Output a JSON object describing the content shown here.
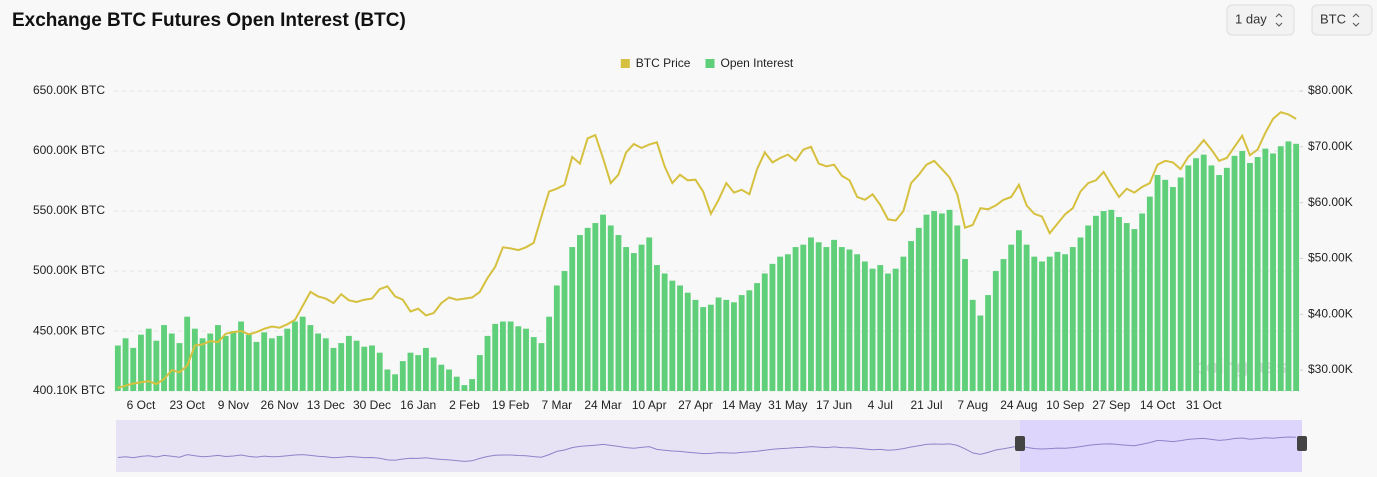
{
  "controls": [
    "1 day",
    "BTC"
  ],
  "watermark": "coinglass",
  "chart_data": {
    "type": "bar",
    "title": "Exchange BTC Futures Open Interest (BTC)",
    "categories": [
      null,
      null,
      null,
      "6 Oct",
      null,
      null,
      null,
      null,
      null,
      "23 Oct",
      null,
      null,
      null,
      null,
      null,
      "9 Nov",
      null,
      null,
      null,
      null,
      null,
      "26 Nov",
      null,
      null,
      null,
      null,
      null,
      "13 Dec",
      null,
      null,
      null,
      null,
      null,
      "30 Dec",
      null,
      null,
      null,
      null,
      null,
      "16 Jan",
      null,
      null,
      null,
      null,
      null,
      "2 Feb",
      null,
      null,
      null,
      null,
      null,
      "19 Feb",
      null,
      null,
      null,
      null,
      null,
      "7 Mar",
      null,
      null,
      null,
      null,
      null,
      "24 Mar",
      null,
      null,
      null,
      null,
      null,
      "10 Apr",
      null,
      null,
      null,
      null,
      null,
      "27 Apr",
      null,
      null,
      null,
      null,
      null,
      "14 May",
      null,
      null,
      null,
      null,
      null,
      "31 May",
      null,
      null,
      null,
      null,
      null,
      "17 Jun",
      null,
      null,
      null,
      null,
      null,
      "4 Jul",
      null,
      null,
      null,
      null,
      null,
      "21 Jul",
      null,
      null,
      null,
      null,
      null,
      "7 Aug",
      null,
      null,
      null,
      null,
      null,
      "24 Aug",
      null,
      null,
      null,
      null,
      null,
      "10 Sep",
      null,
      null,
      null,
      null,
      null,
      "27 Sep",
      null,
      null,
      null,
      null,
      null,
      "14 Oct",
      null,
      null,
      null,
      null,
      null,
      "31 Oct",
      null,
      null,
      null,
      null,
      null,
      null,
      null,
      null,
      null,
      null,
      null,
      null
    ],
    "series": [
      {
        "name": "BTC Price",
        "type": "line",
        "axis": "y2",
        "color": "#d6c03f",
        "values": [
          26.8,
          27.2,
          27.6,
          27.8,
          28.0,
          27.5,
          28.4,
          30.0,
          29.6,
          30.8,
          34.4,
          34.6,
          35.2,
          35.0,
          36.5,
          36.8,
          37.0,
          36.4,
          36.8,
          37.4,
          37.8,
          37.6,
          38.2,
          39.0,
          41.5,
          44.0,
          43.2,
          42.8,
          42.0,
          43.6,
          42.5,
          42.2,
          42.6,
          42.8,
          44.5,
          45.0,
          43.2,
          42.6,
          40.5,
          41.0,
          39.8,
          40.2,
          42.0,
          43.0,
          42.6,
          42.8,
          43.0,
          44.0,
          46.5,
          48.5,
          52.0,
          51.8,
          51.5,
          52.0,
          52.8,
          57.5,
          62.0,
          62.5,
          63.2,
          68.2,
          67.0,
          71.5,
          72.1,
          68.0,
          63.5,
          65.0,
          69.0,
          70.5,
          69.8,
          70.4,
          70.8,
          66.5,
          63.5,
          65.0,
          64.0,
          64.1,
          62.0,
          58.0,
          60.5,
          63.5,
          61.8,
          62.3,
          61.5,
          66.0,
          69.0,
          67.2,
          68.0,
          68.6,
          67.5,
          69.5,
          70.0,
          67.0,
          66.5,
          66.8,
          64.8,
          64.0,
          61.0,
          60.5,
          61.5,
          59.6,
          57.0,
          56.8,
          58.5,
          63.5,
          65.0,
          66.8,
          67.5,
          66.0,
          64.5,
          61.5,
          55.5,
          56.0,
          59.0,
          58.8,
          59.5,
          60.5,
          61.0,
          63.2,
          59.5,
          58.0,
          57.5,
          54.5,
          56.2,
          57.9,
          59.0,
          62.0,
          63.5,
          64.0,
          65.5,
          63.2,
          61.0,
          62.5,
          61.8,
          62.8,
          63.5,
          66.8,
          67.5,
          67.2,
          66.0,
          68.2,
          69.5,
          71.2,
          69.5,
          67.5,
          68.0,
          70.0,
          72.0,
          68.5,
          69.5,
          72.5,
          75.0,
          76.2,
          75.8,
          75.0
        ]
      },
      {
        "name": "Open Interest",
        "type": "bar",
        "color": "#5fd079",
        "values": [
          438,
          444,
          436,
          447,
          452,
          442,
          455,
          448,
          440,
          462,
          452,
          444,
          448,
          455,
          446,
          450,
          458,
          447,
          441,
          449,
          444,
          446,
          452,
          458,
          462,
          455,
          448,
          444,
          436,
          440,
          446,
          442,
          437,
          438,
          432,
          418,
          414,
          425,
          432,
          430,
          436,
          428,
          422,
          418,
          412,
          405,
          410,
          430,
          446,
          456,
          458,
          458,
          454,
          452,
          445,
          440,
          462,
          488,
          500,
          520,
          530,
          536,
          540,
          547,
          538,
          530,
          520,
          515,
          522,
          528,
          505,
          498,
          492,
          488,
          482,
          476,
          470,
          472,
          478,
          476,
          474,
          480,
          484,
          490,
          498,
          506,
          512,
          514,
          520,
          522,
          528,
          524,
          520,
          526,
          520,
          518,
          514,
          508,
          502,
          505,
          498,
          502,
          512,
          525,
          536,
          547,
          550,
          548,
          551,
          538,
          510,
          476,
          463,
          480,
          500,
          510,
          522,
          534,
          522,
          512,
          508,
          512,
          516,
          514,
          520,
          528,
          538,
          546,
          550,
          551,
          545,
          540,
          535,
          548,
          562,
          580,
          576,
          570,
          578,
          588,
          594,
          597,
          588,
          580,
          586,
          596,
          600,
          590,
          595,
          602,
          598,
          604,
          608,
          606
        ]
      }
    ],
    "ylim": [
      400.1,
      650
    ],
    "yticks": [
      {
        "value": 400.1,
        "label": "400.10K BTC"
      },
      {
        "value": 450,
        "label": "450.00K BTC"
      },
      {
        "value": 500,
        "label": "500.00K BTC"
      },
      {
        "value": 550,
        "label": "550.00K BTC"
      },
      {
        "value": 600,
        "label": "600.00K BTC"
      },
      {
        "value": 650,
        "label": "650.00K BTC"
      }
    ],
    "y2lim": [
      26.25,
      80
    ],
    "y2ticks": [
      {
        "value": 30,
        "label": "$30.00K"
      },
      {
        "value": 40,
        "label": "$40.00K"
      },
      {
        "value": 50,
        "label": "$50.00K"
      },
      {
        "value": 60,
        "label": "$60.00K"
      },
      {
        "value": 70,
        "label": "$70.00K"
      },
      {
        "value": 80,
        "label": "$80.00K"
      }
    ],
    "grid": true,
    "legend": "top"
  }
}
